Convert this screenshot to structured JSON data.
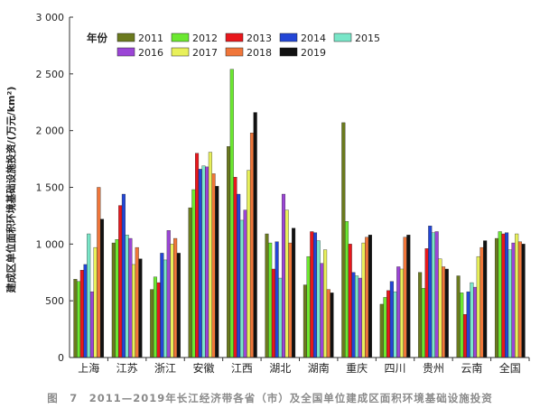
{
  "chart_data": {
    "type": "bar",
    "ylabel": "建成区单位面积环境基础设施投资/(万元/km²)",
    "ylim": [
      0,
      3000
    ],
    "yticks": [
      0,
      500,
      1000,
      1500,
      2000,
      2500,
      3000
    ],
    "ytick_labels": [
      "0",
      "500",
      "1 000",
      "1 500",
      "2 000",
      "2 500",
      "3 000"
    ],
    "legend_title": "年份",
    "legend_position": "top-left",
    "categories": [
      "上海",
      "江苏",
      "浙江",
      "安徽",
      "江西",
      "湖北",
      "湖南",
      "重庆",
      "四川",
      "贵州",
      "云南",
      "全国"
    ],
    "series": [
      {
        "name": "2011",
        "color": "#6b7a1e",
        "values": [
          690,
          1010,
          600,
          1320,
          1860,
          1090,
          640,
          2070,
          470,
          750,
          720,
          1050
        ]
      },
      {
        "name": "2012",
        "color": "#6be830",
        "values": [
          670,
          1040,
          710,
          1480,
          2540,
          1010,
          890,
          1200,
          530,
          610,
          570,
          1110
        ]
      },
      {
        "name": "2013",
        "color": "#e8171c",
        "values": [
          770,
          1340,
          660,
          1800,
          1590,
          780,
          1110,
          1000,
          590,
          960,
          380,
          1090
        ]
      },
      {
        "name": "2014",
        "color": "#2346d6",
        "values": [
          820,
          1440,
          920,
          1660,
          1440,
          1020,
          1100,
          750,
          670,
          1160,
          580,
          1100
        ]
      },
      {
        "name": "2015",
        "color": "#79e6c8",
        "values": [
          1090,
          1080,
          860,
          1690,
          1210,
          700,
          1030,
          720,
          580,
          1100,
          660,
          950
        ]
      },
      {
        "name": "2016",
        "color": "#9b45d6",
        "values": [
          580,
          1050,
          1120,
          1680,
          1300,
          1440,
          830,
          700,
          800,
          1110,
          620,
          1010
        ]
      },
      {
        "name": "2017",
        "color": "#e8f05a",
        "values": [
          970,
          820,
          1000,
          1810,
          1650,
          1300,
          950,
          1010,
          780,
          870,
          890,
          1090
        ]
      },
      {
        "name": "2018",
        "color": "#f0763a",
        "values": [
          1500,
          970,
          1050,
          1620,
          1980,
          1010,
          600,
          1060,
          1060,
          800,
          970,
          1020
        ]
      },
      {
        "name": "2019",
        "color": "#111111",
        "values": [
          1220,
          870,
          920,
          1510,
          2160,
          1140,
          570,
          1080,
          1080,
          780,
          1030,
          1000
        ]
      }
    ]
  },
  "caption": "图　7　2011—2019年长江经济带各省（市）及全国单位建成区面积环境基础设施投资"
}
